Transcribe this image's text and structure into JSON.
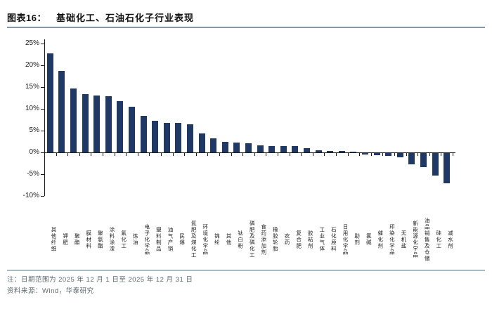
{
  "header": {
    "figure_label": "图表16：",
    "title": "基础化工、石油石化子行业表现"
  },
  "chart_data": {
    "type": "bar",
    "title": "基础化工、石油石化子行业表现",
    "categories": [
      "其他纤维",
      "钾肥",
      "聚酯",
      "膜材料",
      "聚氨酯",
      "涂料涂漆",
      "氟化工",
      "炼油",
      "电子化学品",
      "塑料制品",
      "油气产销",
      "民爆",
      "氮肥及煤化工",
      "环境化学品",
      "锦纶",
      "其他",
      "钛白粉",
      "磷肥及磷化工",
      "食药添加剂",
      "橡胶轮胎",
      "农药",
      "复合肥",
      "胶粘剂",
      "工业气体",
      "石化原料",
      "日用化学品",
      "助剂",
      "氯碱",
      "催化剂",
      "印染化学品",
      "无机盐",
      "新能源化学品",
      "油品销售及仓储",
      "硅化工",
      "减水剂"
    ],
    "values": [
      22.7,
      18.7,
      14.6,
      13.4,
      13.1,
      12.9,
      11.8,
      10.5,
      8.4,
      7.2,
      6.8,
      6.7,
      6.5,
      4.3,
      3.2,
      2.5,
      2.3,
      2.1,
      1.6,
      1.5,
      1.5,
      1.4,
      0.9,
      0.5,
      0.4,
      0.4,
      0.1,
      -0.3,
      -0.5,
      -0.6,
      -1.0,
      -2.6,
      -3.2,
      -5.1,
      -7.0
    ],
    "xlabel": "",
    "ylabel": "",
    "ylim": [
      -10,
      25
    ],
    "y_tick_values": [
      25,
      20,
      15,
      10,
      5,
      0,
      -5,
      -10
    ],
    "y_tick_labels": [
      "25%",
      "20%",
      "15%",
      "10%",
      "5%",
      "0%",
      "-5%",
      "-10%"
    ],
    "grid": false,
    "legend": "none",
    "bar_color": "#1F3864"
  },
  "footer": {
    "note": "注：日期范围为 2025 年 12 月 1 日至 2025 年 12 月 31 日",
    "source": "资料来源：Wind，华泰研究"
  }
}
